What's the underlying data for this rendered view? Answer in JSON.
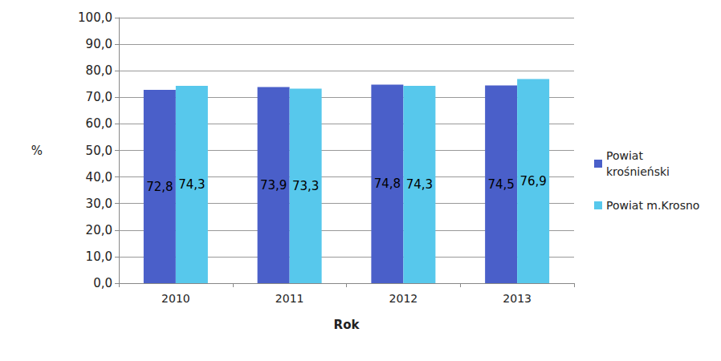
{
  "chart_data": {
    "type": "bar",
    "x_label": "Rok",
    "y_label": "%",
    "categories": [
      "2010",
      "2011",
      "2012",
      "2013"
    ],
    "series": [
      {
        "name": "Powiat krośnieński",
        "color": "#4a5fc9",
        "values": [
          72.8,
          73.9,
          74.8,
          74.5
        ],
        "value_labels": [
          "72,8",
          "73,9",
          "74,8",
          "74,5"
        ]
      },
      {
        "name": "Powiat m.Krosno",
        "color": "#57c8ec",
        "values": [
          74.3,
          73.3,
          74.3,
          76.9
        ],
        "value_labels": [
          "74,3",
          "73,3",
          "74,3",
          "76,9"
        ]
      }
    ],
    "ylim": [
      0,
      100
    ],
    "yticks": [
      {
        "value": 0,
        "label": "0,0"
      },
      {
        "value": 10,
        "label": "10,0"
      },
      {
        "value": 20,
        "label": "20,0"
      },
      {
        "value": 30,
        "label": "30,0"
      },
      {
        "value": 40,
        "label": "40,0"
      },
      {
        "value": 50,
        "label": "50,0"
      },
      {
        "value": 60,
        "label": "60,0"
      },
      {
        "value": 70,
        "label": "70,0"
      },
      {
        "value": 80,
        "label": "80,0"
      },
      {
        "value": 90,
        "label": "90,0"
      },
      {
        "value": 100,
        "label": "100,0"
      }
    ],
    "grid": true,
    "legend": "right",
    "data_labels": true
  }
}
